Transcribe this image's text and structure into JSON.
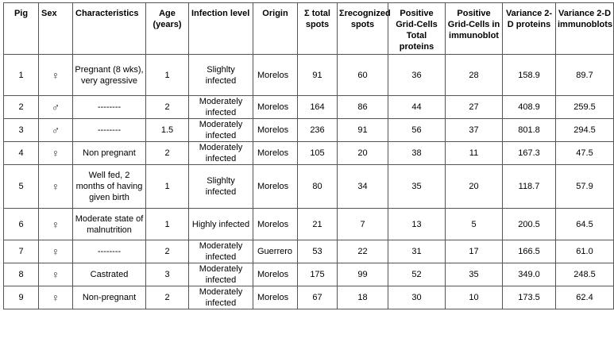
{
  "headers": [
    "Pig",
    "Sex",
    "Characteristics",
    "Age (years)",
    "Infection level",
    "Origin",
    "Σ total spots",
    "Σrecognized spots",
    "Positive Grid-Cells Total proteins",
    "Positive Grid-Cells in immunoblot",
    "Variance 2-D proteins",
    "Variance 2-D immunoblots"
  ],
  "rows": [
    {
      "pig": "1",
      "sex": "♀",
      "characteristics": "Pregnant (8 wks), very agressive",
      "age": "1",
      "infection": "Slighlty infected",
      "origin": "Morelos",
      "total_spots": "91",
      "recognized_spots": "60",
      "pos_total": "36",
      "pos_immuno": "28",
      "var_proteins": "158.9",
      "var_immuno": "89.7"
    },
    {
      "pig": "2",
      "sex": "♂",
      "characteristics": "--------",
      "age": "2",
      "infection": "Moderately infected",
      "origin": "Morelos",
      "total_spots": "164",
      "recognized_spots": "86",
      "pos_total": "44",
      "pos_immuno": "27",
      "var_proteins": "408.9",
      "var_immuno": "259.5"
    },
    {
      "pig": "3",
      "sex": "♂",
      "characteristics": "--------",
      "age": "1.5",
      "infection": "Moderately infected",
      "origin": "Morelos",
      "total_spots": "236",
      "recognized_spots": "91",
      "pos_total": "56",
      "pos_immuno": "37",
      "var_proteins": "801.8",
      "var_immuno": "294.5"
    },
    {
      "pig": "4",
      "sex": "♀",
      "characteristics": "Non pregnant",
      "age": "2",
      "infection": "Moderately infected",
      "origin": "Morelos",
      "total_spots": "105",
      "recognized_spots": "20",
      "pos_total": "38",
      "pos_immuno": "11",
      "var_proteins": "167.3",
      "var_immuno": "47.5"
    },
    {
      "pig": "5",
      "sex": "♀",
      "characteristics": "Well fed, 2 months of having given birth",
      "age": "1",
      "infection": "Slighlty infected",
      "origin": "Morelos",
      "total_spots": "80",
      "recognized_spots": "34",
      "pos_total": "35",
      "pos_immuno": "20",
      "var_proteins": "118.7",
      "var_immuno": "57.9"
    },
    {
      "pig": "6",
      "sex": "♀",
      "characteristics": "Moderate state of malnutrition",
      "age": "1",
      "infection": "Highly infected",
      "origin": "Morelos",
      "total_spots": "21",
      "recognized_spots": "7",
      "pos_total": "13",
      "pos_immuno": "5",
      "var_proteins": "200.5",
      "var_immuno": "64.5"
    },
    {
      "pig": "7",
      "sex": "♀",
      "characteristics": "--------",
      "age": "2",
      "infection": "Moderately infected",
      "origin": "Guerrero",
      "total_spots": "53",
      "recognized_spots": "22",
      "pos_total": "31",
      "pos_immuno": "17",
      "var_proteins": "166.5",
      "var_immuno": "61.0"
    },
    {
      "pig": "8",
      "sex": "♀",
      "characteristics": "Castrated",
      "age": "3",
      "infection": "Moderately infected",
      "origin": "Morelos",
      "total_spots": "175",
      "recognized_spots": "99",
      "pos_total": "52",
      "pos_immuno": "35",
      "var_proteins": "349.0",
      "var_immuno": "248.5"
    },
    {
      "pig": "9",
      "sex": "♀",
      "characteristics": "Non-pregnant",
      "age": "2",
      "infection": "Moderately infected",
      "origin": "Morelos",
      "total_spots": "67",
      "recognized_spots": "18",
      "pos_total": "30",
      "pos_immuno": "10",
      "var_proteins": "173.5",
      "var_immuno": "62.4"
    }
  ]
}
